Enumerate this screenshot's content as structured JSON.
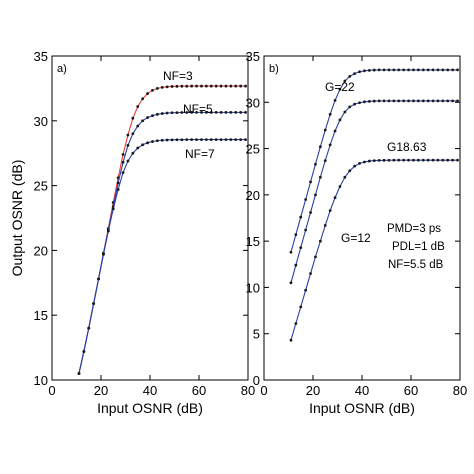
{
  "figure": {
    "ylabel": "Output OSNR (dB)"
  },
  "chart_data": [
    {
      "type": "line",
      "panel_label": "a)",
      "xlabel": "Input OSNR (dB)",
      "ylabel": "Output OSNR (dB)",
      "xlim": [
        0,
        80
      ],
      "ylim": [
        10,
        35
      ],
      "xticks": [
        0,
        20,
        40,
        60,
        80
      ],
      "yticks": [
        10,
        15,
        20,
        25,
        30,
        35
      ],
      "grid": false,
      "series": [
        {
          "name": "NF=3",
          "color": "#e8403a",
          "x": [
            11,
            13,
            15,
            17,
            19,
            21,
            23,
            25,
            27,
            29,
            31,
            33,
            35,
            37,
            39,
            41,
            43,
            45,
            47,
            49,
            51,
            53,
            55,
            57,
            59,
            61,
            63,
            65,
            67,
            69,
            71,
            73,
            75,
            77,
            79
          ],
          "y": [
            10.5,
            12.2,
            14.0,
            15.9,
            17.8,
            19.8,
            21.7,
            23.7,
            25.6,
            27.4,
            28.9,
            30.2,
            31.1,
            31.7,
            32.1,
            32.35,
            32.5,
            32.58,
            32.62,
            32.65,
            32.66,
            32.67,
            32.67,
            32.68,
            32.68,
            32.68,
            32.68,
            32.68,
            32.68,
            32.68,
            32.68,
            32.68,
            32.68,
            32.68,
            32.68
          ]
        },
        {
          "name": "NF=5",
          "color": "#2a3fa8",
          "x": [
            11,
            13,
            15,
            17,
            19,
            21,
            23,
            25,
            27,
            29,
            31,
            33,
            35,
            37,
            39,
            41,
            43,
            45,
            47,
            49,
            51,
            53,
            55,
            57,
            59,
            61,
            63,
            65,
            67,
            69,
            71,
            73,
            75,
            77,
            79
          ],
          "y": [
            10.5,
            12.2,
            14.0,
            15.9,
            17.8,
            19.7,
            21.6,
            23.4,
            25.2,
            26.8,
            28.1,
            29.0,
            29.6,
            30.0,
            30.25,
            30.4,
            30.5,
            30.56,
            30.6,
            30.62,
            30.63,
            30.64,
            30.64,
            30.65,
            30.65,
            30.65,
            30.65,
            30.65,
            30.65,
            30.65,
            30.65,
            30.65,
            30.65,
            30.65,
            30.65
          ]
        },
        {
          "name": "NF=7",
          "color": "#2a3fa8",
          "x": [
            11,
            13,
            15,
            17,
            19,
            21,
            23,
            25,
            27,
            29,
            31,
            33,
            35,
            37,
            39,
            41,
            43,
            45,
            47,
            49,
            51,
            53,
            55,
            57,
            59,
            61,
            63,
            65,
            67,
            69,
            71,
            73,
            75,
            77,
            79
          ],
          "y": [
            10.5,
            12.2,
            14.0,
            15.9,
            17.8,
            19.7,
            21.5,
            23.2,
            24.7,
            26.0,
            26.9,
            27.5,
            27.9,
            28.15,
            28.3,
            28.4,
            28.46,
            28.5,
            28.52,
            28.53,
            28.54,
            28.54,
            28.55,
            28.55,
            28.55,
            28.55,
            28.55,
            28.55,
            28.55,
            28.55,
            28.55,
            28.55,
            28.55,
            28.55,
            28.55
          ]
        }
      ]
    },
    {
      "type": "line",
      "panel_label": "b)",
      "xlabel": "Input OSNR (dB)",
      "xlim": [
        0,
        80
      ],
      "ylim": [
        0,
        35
      ],
      "xticks": [
        0,
        20,
        40,
        60,
        80
      ],
      "yticks": [
        0,
        5,
        10,
        15,
        20,
        25,
        30,
        35
      ],
      "grid": false,
      "annotations": [
        "G=22",
        "G18.63",
        "G=12",
        "PMD=3 ps",
        "PDL=1 dB",
        "NF=5.5 dB"
      ],
      "series": [
        {
          "name": "G=22",
          "color": "#2a3fa8",
          "x": [
            11,
            13,
            15,
            17,
            19,
            21,
            23,
            25,
            27,
            29,
            31,
            33,
            35,
            37,
            39,
            41,
            43,
            45,
            47,
            49,
            51,
            53,
            55,
            57,
            59,
            61,
            63,
            65,
            67,
            69,
            71,
            73,
            75,
            77,
            79
          ],
          "y": [
            13.8,
            15.7,
            17.6,
            19.5,
            21.4,
            23.3,
            25.2,
            27.0,
            28.7,
            30.2,
            31.4,
            32.3,
            32.8,
            33.1,
            33.3,
            33.4,
            33.45,
            33.48,
            33.5,
            33.5,
            33.5,
            33.5,
            33.5,
            33.5,
            33.5,
            33.5,
            33.5,
            33.5,
            33.5,
            33.5,
            33.5,
            33.5,
            33.5,
            33.5,
            33.5
          ]
        },
        {
          "name": "",
          "color": "#2a3fa8",
          "x": [
            11,
            13,
            15,
            17,
            19,
            21,
            23,
            25,
            27,
            29,
            31,
            33,
            35,
            37,
            39,
            41,
            43,
            45,
            47,
            49,
            51,
            53,
            55,
            57,
            59,
            61,
            63,
            65,
            67,
            69,
            71,
            73,
            75,
            77,
            79
          ],
          "y": [
            10.5,
            12.4,
            14.3,
            16.2,
            18.1,
            20.0,
            21.9,
            23.7,
            25.4,
            26.9,
            28.1,
            28.95,
            29.5,
            29.8,
            29.95,
            30.05,
            30.1,
            30.13,
            30.15,
            30.15,
            30.15,
            30.15,
            30.15,
            30.15,
            30.15,
            30.15,
            30.15,
            30.15,
            30.15,
            30.15,
            30.15,
            30.15,
            30.15,
            30.15,
            30.15
          ]
        },
        {
          "name": "G18.63",
          "color": "#2a3fa8",
          "x": [
            11,
            13,
            15,
            17,
            19,
            21,
            23,
            25,
            27,
            29,
            31,
            33,
            35,
            37,
            39,
            41,
            43,
            45,
            47,
            49,
            51,
            53,
            55,
            57,
            59,
            61,
            63,
            65,
            67,
            69,
            71,
            73,
            75,
            77,
            79
          ],
          "y": [
            4.3,
            6.1,
            7.9,
            9.7,
            11.5,
            13.3,
            15.0,
            16.7,
            18.3,
            19.7,
            20.9,
            21.9,
            22.6,
            23.1,
            23.4,
            23.55,
            23.65,
            23.7,
            23.72,
            23.73,
            23.74,
            23.75,
            23.75,
            23.75,
            23.75,
            23.75,
            23.75,
            23.75,
            23.75,
            23.75,
            23.75,
            23.75,
            23.75,
            23.75,
            23.75
          ]
        }
      ]
    }
  ]
}
